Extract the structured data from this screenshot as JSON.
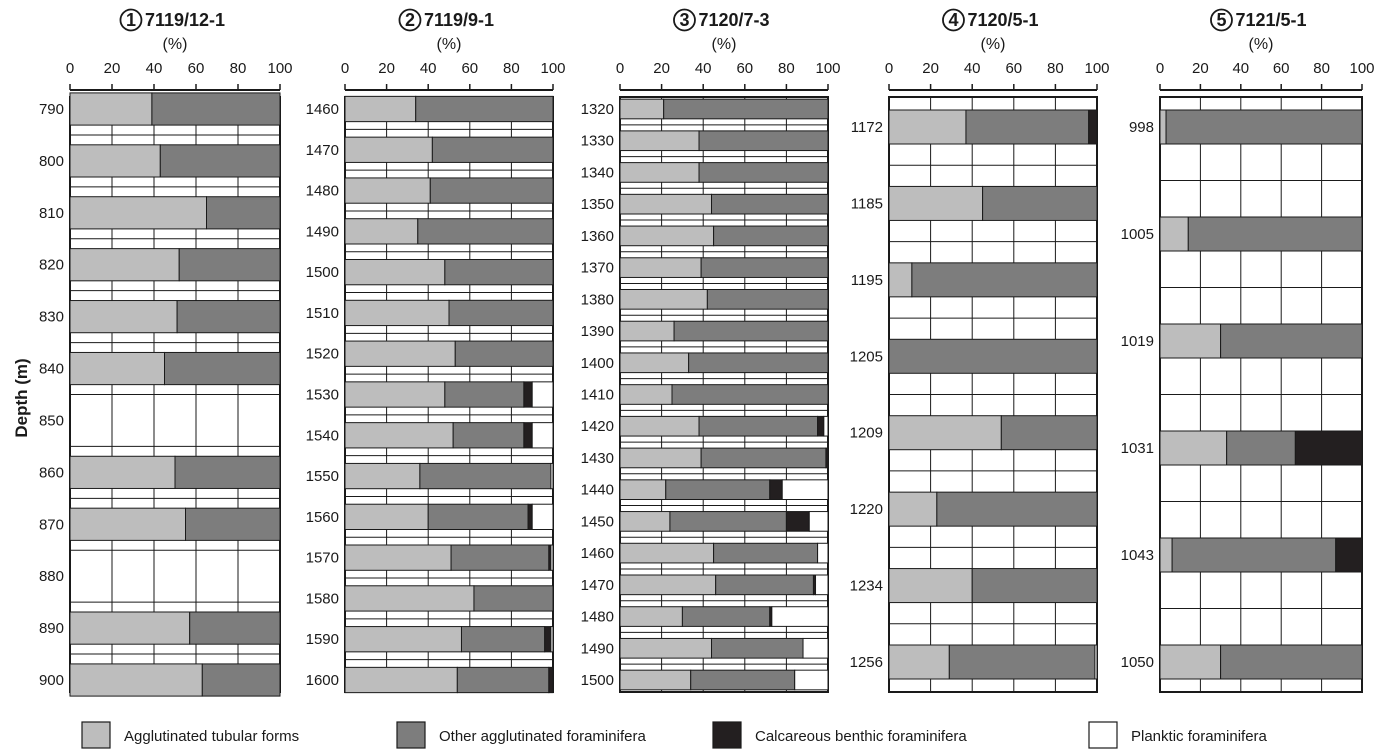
{
  "figure": {
    "ylabel": "Depth (m)",
    "unit": "(%)",
    "colors": {
      "Agglutinated tubular forms": "#bdbdbd",
      "Other agglutinated foraminifera": "#7d7d7d",
      "Calcareous benthic foraminifera": "#231f20",
      "Planktic foraminifera": "#ffffff"
    },
    "legend": [
      {
        "label": "Agglutinated tubular forms",
        "color": "#bdbdbd"
      },
      {
        "label": "Other agglutinated foraminifera",
        "color": "#7d7d7d"
      },
      {
        "label": "Calcareous benthic foraminifera",
        "color": "#231f20"
      },
      {
        "label": "Planktic foraminifera",
        "color": "#ffffff"
      }
    ]
  },
  "chart_data": [
    {
      "type": "bar",
      "stacked": true,
      "orientation": "horizontal",
      "number": "1",
      "title": "7119/12-1",
      "xlabel": "(%)",
      "ylabel": "Depth (m)",
      "xlim": [
        0,
        100
      ],
      "xticks": [
        0,
        20,
        40,
        60,
        80,
        100
      ],
      "depth_labels": [
        "790",
        "800",
        "810",
        "820",
        "830",
        "840",
        "850",
        "860",
        "870",
        "880",
        "890",
        "900"
      ],
      "categories": [
        "790",
        "800",
        "810",
        "820",
        "830",
        "840",
        "860",
        "870",
        "890",
        "900"
      ],
      "series": [
        {
          "name": "Agglutinated tubular forms",
          "values": [
            39,
            43,
            65,
            52,
            51,
            45,
            50,
            55,
            57,
            63
          ]
        },
        {
          "name": "Other agglutinated foraminifera",
          "values": [
            61,
            57,
            35,
            48,
            49,
            55,
            50,
            45,
            43,
            37
          ]
        },
        {
          "name": "Calcareous benthic foraminifera",
          "values": [
            0,
            0,
            0,
            0,
            0,
            0,
            0,
            0,
            0,
            0
          ]
        },
        {
          "name": "Planktic foraminifera",
          "values": [
            0,
            0,
            0,
            0,
            0,
            0,
            0,
            0,
            0,
            0
          ]
        }
      ]
    },
    {
      "type": "bar",
      "stacked": true,
      "orientation": "horizontal",
      "number": "2",
      "title": "7119/9-1",
      "xlabel": "(%)",
      "xlim": [
        0,
        100
      ],
      "xticks": [
        0,
        20,
        40,
        60,
        80,
        100
      ],
      "depth_labels": [
        "1460",
        "1470",
        "1480",
        "1490",
        "1500",
        "1510",
        "1520",
        "1530",
        "1540",
        "1550",
        "1560",
        "1570",
        "1580",
        "1590",
        "1600"
      ],
      "categories": [
        "1460",
        "1470",
        "1480",
        "1490",
        "1500",
        "1510",
        "1520",
        "1530",
        "1540",
        "1550",
        "1560",
        "1570",
        "1580",
        "1590",
        "1600"
      ],
      "series": [
        {
          "name": "Agglutinated tubular forms",
          "values": [
            34,
            42,
            41,
            35,
            48,
            50,
            53,
            48,
            52,
            36,
            40,
            51,
            62,
            56,
            54
          ]
        },
        {
          "name": "Other agglutinated foraminifera",
          "values": [
            66,
            58,
            59,
            65,
            52,
            50,
            47,
            38,
            34,
            63,
            48,
            47,
            38,
            40,
            44
          ]
        },
        {
          "name": "Calcareous benthic foraminifera",
          "values": [
            0,
            0,
            0,
            0,
            0,
            0,
            0,
            4,
            4,
            0,
            2,
            1,
            0,
            3,
            2
          ]
        },
        {
          "name": "Planktic foraminifera",
          "values": [
            0,
            0,
            0,
            0,
            0,
            0,
            0,
            10,
            10,
            1,
            10,
            1,
            0,
            1,
            0
          ]
        }
      ]
    },
    {
      "type": "bar",
      "stacked": true,
      "orientation": "horizontal",
      "number": "3",
      "title": "7120/7-3",
      "xlabel": "(%)",
      "xlim": [
        0,
        100
      ],
      "xticks": [
        0,
        20,
        40,
        60,
        80,
        100
      ],
      "depth_labels": [
        "1320",
        "1330",
        "1340",
        "1350",
        "1360",
        "1370",
        "1380",
        "1390",
        "1400",
        "1410",
        "1420",
        "1430",
        "1440",
        "1450",
        "1460",
        "1470",
        "1480",
        "1490",
        "1500"
      ],
      "categories": [
        "1320",
        "1330",
        "1340",
        "1350",
        "1360",
        "1370",
        "1380",
        "1390",
        "1400",
        "1410",
        "1420",
        "1430",
        "1440",
        "1450",
        "1460",
        "1470",
        "1480",
        "1490",
        "1500"
      ],
      "series": [
        {
          "name": "Agglutinated tubular forms",
          "values": [
            21,
            38,
            38,
            44,
            45,
            39,
            42,
            26,
            33,
            25,
            38,
            39,
            22,
            24,
            45,
            46,
            30,
            44,
            34
          ]
        },
        {
          "name": "Other agglutinated foraminifera",
          "values": [
            79,
            62,
            62,
            56,
            55,
            61,
            58,
            74,
            67,
            75,
            57,
            60,
            50,
            56,
            50,
            47,
            42,
            44,
            50
          ]
        },
        {
          "name": "Calcareous benthic foraminifera",
          "values": [
            0,
            0,
            0,
            0,
            0,
            0,
            0,
            0,
            0,
            0,
            3,
            1,
            6,
            11,
            0,
            1,
            1,
            0,
            0
          ]
        },
        {
          "name": "Planktic foraminifera",
          "values": [
            0,
            0,
            0,
            0,
            0,
            0,
            0,
            0,
            0,
            0,
            2,
            0,
            22,
            9,
            5,
            6,
            27,
            12,
            16
          ]
        }
      ]
    },
    {
      "type": "bar",
      "stacked": true,
      "orientation": "horizontal",
      "number": "4",
      "title": "7120/5-1",
      "xlabel": "(%)",
      "xlim": [
        0,
        100
      ],
      "xticks": [
        0,
        20,
        40,
        60,
        80,
        100
      ],
      "depth_labels": [
        "1172",
        "1185",
        "1195",
        "1205",
        "1209",
        "1220",
        "1234",
        "1256"
      ],
      "categories": [
        "1172",
        "1185",
        "1195",
        "1205",
        "1209",
        "1220",
        "1234",
        "1256"
      ],
      "series": [
        {
          "name": "Agglutinated tubular forms",
          "values": [
            37,
            45,
            11,
            0,
            54,
            23,
            40,
            29
          ]
        },
        {
          "name": "Other agglutinated foraminifera",
          "values": [
            59,
            55,
            89,
            100,
            46,
            77,
            60,
            70
          ]
        },
        {
          "name": "Calcareous benthic foraminifera",
          "values": [
            4,
            0,
            0,
            0,
            0,
            0,
            0,
            0
          ]
        },
        {
          "name": "Planktic foraminifera",
          "values": [
            0,
            0,
            0,
            0,
            0,
            0,
            0,
            1
          ]
        }
      ]
    },
    {
      "type": "bar",
      "stacked": true,
      "orientation": "horizontal",
      "number": "5",
      "title": "7121/5-1",
      "xlabel": "(%)",
      "xlim": [
        0,
        100
      ],
      "xticks": [
        0,
        20,
        40,
        60,
        80,
        100
      ],
      "depth_labels": [
        "998",
        "1005",
        "1019",
        "1031",
        "1043",
        "1050"
      ],
      "categories": [
        "998",
        "1005",
        "1019",
        "1031",
        "1043",
        "1050"
      ],
      "series": [
        {
          "name": "Agglutinated tubular forms",
          "values": [
            3,
            14,
            30,
            33,
            6,
            30
          ]
        },
        {
          "name": "Other agglutinated foraminifera",
          "values": [
            97,
            86,
            70,
            34,
            81,
            70
          ]
        },
        {
          "name": "Calcareous benthic foraminifera",
          "values": [
            0,
            0,
            0,
            33,
            13,
            0
          ]
        },
        {
          "name": "Planktic foraminifera",
          "values": [
            0,
            0,
            0,
            0,
            0,
            0
          ]
        }
      ]
    }
  ]
}
